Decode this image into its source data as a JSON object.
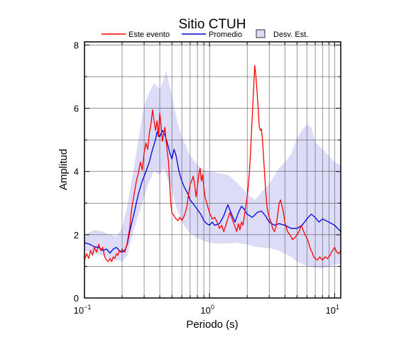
{
  "chart_data": {
    "type": "line",
    "title": "Sitio CTUH",
    "xlabel": "Periodo (s)",
    "ylabel": "Amplitud",
    "xscale": "log",
    "xlim": [
      0.1,
      11.2
    ],
    "ylim": [
      0,
      8.1
    ],
    "x_ticks": [
      {
        "value": 0.1,
        "base": "10",
        "exp": "−1"
      },
      {
        "value": 1,
        "base": "10",
        "exp": "0"
      },
      {
        "value": 10,
        "base": "10",
        "exp": "1"
      }
    ],
    "y_ticks": [
      0,
      2,
      4,
      6,
      8
    ],
    "grid": true,
    "legend_position": "top",
    "legend": [
      {
        "label": "Este evento",
        "kind": "line",
        "color": "#ff0000"
      },
      {
        "label": "Promedio",
        "kind": "line",
        "color": "#0000dd"
      },
      {
        "label": "Desv. Est.",
        "kind": "box",
        "color": "#dcdcf8"
      }
    ],
    "band": {
      "name": "Desv. Est.",
      "color": "#dcdcf8",
      "upper": [
        [
          0.1,
          2.0
        ],
        [
          0.12,
          2.15
        ],
        [
          0.14,
          2.1
        ],
        [
          0.16,
          2.0
        ],
        [
          0.18,
          1.95
        ],
        [
          0.2,
          2.2
        ],
        [
          0.22,
          2.9
        ],
        [
          0.25,
          4.2
        ],
        [
          0.28,
          5.4
        ],
        [
          0.3,
          6.1
        ],
        [
          0.33,
          6.5
        ],
        [
          0.36,
          6.8
        ],
        [
          0.4,
          6.6
        ],
        [
          0.43,
          6.9
        ],
        [
          0.45,
          7.2
        ],
        [
          0.48,
          6.7
        ],
        [
          0.5,
          6.4
        ],
        [
          0.55,
          5.6
        ],
        [
          0.6,
          5.1
        ],
        [
          0.65,
          4.8
        ],
        [
          0.7,
          4.5
        ],
        [
          0.8,
          4.2
        ],
        [
          0.9,
          4.05
        ],
        [
          1.0,
          4.0
        ],
        [
          1.2,
          3.95
        ],
        [
          1.4,
          3.9
        ],
        [
          1.6,
          3.7
        ],
        [
          1.8,
          3.5
        ],
        [
          2.0,
          3.3
        ],
        [
          2.3,
          3.1
        ],
        [
          2.6,
          3.35
        ],
        [
          3.0,
          3.6
        ],
        [
          3.5,
          4.05
        ],
        [
          4.0,
          4.3
        ],
        [
          4.5,
          4.55
        ],
        [
          5.0,
          5.05
        ],
        [
          5.5,
          5.3
        ],
        [
          6.0,
          5.5
        ],
        [
          6.5,
          5.4
        ],
        [
          7.0,
          4.95
        ],
        [
          8.0,
          4.7
        ],
        [
          9.0,
          4.5
        ],
        [
          10.0,
          4.3
        ],
        [
          11.2,
          4.2
        ]
      ],
      "lower": [
        [
          0.1,
          1.5
        ],
        [
          0.12,
          1.4
        ],
        [
          0.14,
          1.35
        ],
        [
          0.16,
          1.2
        ],
        [
          0.18,
          1.2
        ],
        [
          0.2,
          1.15
        ],
        [
          0.22,
          1.35
        ],
        [
          0.25,
          2.2
        ],
        [
          0.28,
          2.8
        ],
        [
          0.3,
          3.2
        ],
        [
          0.33,
          3.7
        ],
        [
          0.36,
          4.0
        ],
        [
          0.4,
          3.9
        ],
        [
          0.43,
          4.1
        ],
        [
          0.45,
          3.9
        ],
        [
          0.5,
          3.4
        ],
        [
          0.55,
          2.8
        ],
        [
          0.6,
          2.4
        ],
        [
          0.65,
          2.2
        ],
        [
          0.7,
          2.05
        ],
        [
          0.8,
          1.9
        ],
        [
          0.9,
          1.8
        ],
        [
          1.0,
          1.75
        ],
        [
          1.2,
          1.72
        ],
        [
          1.4,
          1.72
        ],
        [
          1.6,
          1.75
        ],
        [
          1.8,
          1.72
        ],
        [
          2.0,
          1.7
        ],
        [
          2.3,
          1.62
        ],
        [
          2.6,
          1.6
        ],
        [
          3.0,
          1.58
        ],
        [
          3.5,
          1.52
        ],
        [
          4.0,
          1.4
        ],
        [
          4.5,
          1.3
        ],
        [
          5.0,
          1.15
        ],
        [
          5.5,
          1.08
        ],
        [
          6.0,
          1.02
        ],
        [
          6.5,
          0.98
        ],
        [
          7.0,
          0.95
        ],
        [
          8.0,
          0.95
        ],
        [
          9.0,
          0.98
        ],
        [
          10.0,
          1.05
        ],
        [
          11.2,
          1.1
        ]
      ]
    },
    "series": [
      {
        "name": "Promedio",
        "color": "#0000dd",
        "points": [
          [
            0.1,
            1.75
          ],
          [
            0.11,
            1.7
          ],
          [
            0.12,
            1.62
          ],
          [
            0.13,
            1.6
          ],
          [
            0.14,
            1.5
          ],
          [
            0.15,
            1.55
          ],
          [
            0.16,
            1.42
          ],
          [
            0.17,
            1.55
          ],
          [
            0.18,
            1.6
          ],
          [
            0.19,
            1.5
          ],
          [
            0.2,
            1.45
          ],
          [
            0.21,
            1.5
          ],
          [
            0.22,
            1.7
          ],
          [
            0.23,
            2.1
          ],
          [
            0.25,
            2.7
          ],
          [
            0.27,
            3.3
          ],
          [
            0.29,
            3.7
          ],
          [
            0.31,
            4.0
          ],
          [
            0.33,
            4.3
          ],
          [
            0.35,
            4.7
          ],
          [
            0.37,
            5.0
          ],
          [
            0.38,
            5.25
          ],
          [
            0.4,
            5.1
          ],
          [
            0.42,
            5.3
          ],
          [
            0.44,
            5.15
          ],
          [
            0.46,
            4.9
          ],
          [
            0.48,
            4.6
          ],
          [
            0.5,
            4.4
          ],
          [
            0.52,
            4.7
          ],
          [
            0.54,
            4.5
          ],
          [
            0.57,
            4.0
          ],
          [
            0.6,
            3.7
          ],
          [
            0.63,
            3.5
          ],
          [
            0.67,
            3.3
          ],
          [
            0.7,
            3.1
          ],
          [
            0.75,
            2.95
          ],
          [
            0.8,
            2.8
          ],
          [
            0.85,
            2.65
          ],
          [
            0.9,
            2.45
          ],
          [
            0.95,
            2.35
          ],
          [
            1.0,
            2.3
          ],
          [
            1.05,
            2.4
          ],
          [
            1.1,
            2.3
          ],
          [
            1.2,
            2.35
          ],
          [
            1.3,
            2.6
          ],
          [
            1.4,
            2.95
          ],
          [
            1.5,
            2.65
          ],
          [
            1.6,
            2.4
          ],
          [
            1.7,
            2.7
          ],
          [
            1.8,
            2.9
          ],
          [
            1.9,
            2.8
          ],
          [
            2.0,
            2.65
          ],
          [
            2.2,
            2.55
          ],
          [
            2.4,
            2.7
          ],
          [
            2.6,
            2.75
          ],
          [
            2.8,
            2.6
          ],
          [
            3.0,
            2.4
          ],
          [
            3.3,
            2.3
          ],
          [
            3.6,
            2.35
          ],
          [
            4.0,
            2.3
          ],
          [
            4.5,
            2.2
          ],
          [
            5.0,
            2.2
          ],
          [
            5.5,
            2.3
          ],
          [
            6.0,
            2.5
          ],
          [
            6.5,
            2.65
          ],
          [
            7.0,
            2.55
          ],
          [
            7.5,
            2.4
          ],
          [
            8.0,
            2.5
          ],
          [
            8.5,
            2.45
          ],
          [
            9.0,
            2.4
          ],
          [
            10.0,
            2.3
          ],
          [
            11.2,
            2.1
          ]
        ]
      },
      {
        "name": "Este evento",
        "color": "#ff0000",
        "points": [
          [
            0.1,
            1.2
          ],
          [
            0.104,
            1.4
          ],
          [
            0.108,
            1.25
          ],
          [
            0.112,
            1.5
          ],
          [
            0.116,
            1.35
          ],
          [
            0.12,
            1.6
          ],
          [
            0.125,
            1.45
          ],
          [
            0.13,
            1.7
          ],
          [
            0.135,
            1.5
          ],
          [
            0.14,
            1.6
          ],
          [
            0.145,
            1.3
          ],
          [
            0.15,
            1.2
          ],
          [
            0.155,
            1.15
          ],
          [
            0.16,
            1.25
          ],
          [
            0.165,
            1.15
          ],
          [
            0.17,
            1.3
          ],
          [
            0.175,
            1.25
          ],
          [
            0.18,
            1.4
          ],
          [
            0.185,
            1.35
          ],
          [
            0.19,
            1.5
          ],
          [
            0.195,
            1.45
          ],
          [
            0.2,
            1.55
          ],
          [
            0.205,
            1.5
          ],
          [
            0.21,
            1.45
          ],
          [
            0.215,
            1.6
          ],
          [
            0.22,
            1.75
          ],
          [
            0.225,
            2.0
          ],
          [
            0.23,
            2.2
          ],
          [
            0.235,
            2.6
          ],
          [
            0.24,
            2.9
          ],
          [
            0.245,
            3.1
          ],
          [
            0.25,
            3.3
          ],
          [
            0.26,
            3.7
          ],
          [
            0.27,
            3.95
          ],
          [
            0.28,
            4.3
          ],
          [
            0.29,
            4.05
          ],
          [
            0.3,
            4.6
          ],
          [
            0.31,
            4.9
          ],
          [
            0.32,
            4.7
          ],
          [
            0.33,
            5.2
          ],
          [
            0.34,
            5.5
          ],
          [
            0.35,
            5.95
          ],
          [
            0.36,
            5.6
          ],
          [
            0.37,
            5.3
          ],
          [
            0.38,
            5.6
          ],
          [
            0.39,
            5.1
          ],
          [
            0.4,
            5.85
          ],
          [
            0.41,
            5.45
          ],
          [
            0.42,
            4.95
          ],
          [
            0.43,
            5.2
          ],
          [
            0.44,
            5.4
          ],
          [
            0.45,
            4.95
          ],
          [
            0.46,
            4.6
          ],
          [
            0.47,
            4.3
          ],
          [
            0.48,
            3.6
          ],
          [
            0.49,
            3.0
          ],
          [
            0.5,
            2.7
          ],
          [
            0.52,
            2.6
          ],
          [
            0.54,
            2.5
          ],
          [
            0.56,
            2.45
          ],
          [
            0.58,
            2.55
          ],
          [
            0.6,
            2.45
          ],
          [
            0.62,
            2.55
          ],
          [
            0.64,
            2.7
          ],
          [
            0.66,
            2.9
          ],
          [
            0.68,
            3.3
          ],
          [
            0.7,
            3.6
          ],
          [
            0.72,
            3.7
          ],
          [
            0.74,
            3.85
          ],
          [
            0.76,
            3.6
          ],
          [
            0.78,
            3.2
          ],
          [
            0.8,
            3.5
          ],
          [
            0.82,
            3.9
          ],
          [
            0.84,
            4.1
          ],
          [
            0.86,
            3.7
          ],
          [
            0.88,
            3.9
          ],
          [
            0.9,
            3.5
          ],
          [
            0.92,
            3.2
          ],
          [
            0.95,
            3.0
          ],
          [
            1.0,
            2.7
          ],
          [
            1.05,
            2.5
          ],
          [
            1.1,
            2.55
          ],
          [
            1.15,
            2.4
          ],
          [
            1.2,
            2.2
          ],
          [
            1.25,
            2.3
          ],
          [
            1.3,
            2.1
          ],
          [
            1.35,
            2.3
          ],
          [
            1.4,
            2.5
          ],
          [
            1.45,
            2.7
          ],
          [
            1.5,
            2.55
          ],
          [
            1.55,
            2.4
          ],
          [
            1.6,
            2.25
          ],
          [
            1.65,
            2.1
          ],
          [
            1.7,
            2.35
          ],
          [
            1.75,
            2.15
          ],
          [
            1.8,
            2.4
          ],
          [
            1.85,
            2.3
          ],
          [
            1.9,
            2.6
          ],
          [
            1.95,
            2.9
          ],
          [
            2.0,
            3.2
          ],
          [
            2.05,
            3.6
          ],
          [
            2.1,
            4.2
          ],
          [
            2.15,
            5.0
          ],
          [
            2.2,
            5.8
          ],
          [
            2.25,
            6.6
          ],
          [
            2.3,
            7.35
          ],
          [
            2.35,
            7.0
          ],
          [
            2.4,
            6.5
          ],
          [
            2.45,
            6.0
          ],
          [
            2.5,
            5.4
          ],
          [
            2.55,
            5.3
          ],
          [
            2.6,
            5.35
          ],
          [
            2.65,
            5.0
          ],
          [
            2.7,
            4.5
          ],
          [
            2.75,
            4.0
          ],
          [
            2.8,
            3.5
          ],
          [
            2.85,
            3.1
          ],
          [
            2.9,
            2.8
          ],
          [
            3.0,
            2.55
          ],
          [
            3.1,
            2.4
          ],
          [
            3.2,
            2.2
          ],
          [
            3.3,
            2.1
          ],
          [
            3.4,
            2.25
          ],
          [
            3.5,
            2.6
          ],
          [
            3.6,
            3.0
          ],
          [
            3.7,
            3.1
          ],
          [
            3.8,
            2.9
          ],
          [
            3.9,
            2.7
          ],
          [
            4.0,
            2.4
          ],
          [
            4.2,
            2.1
          ],
          [
            4.4,
            2.0
          ],
          [
            4.6,
            1.85
          ],
          [
            4.8,
            1.9
          ],
          [
            5.0,
            2.0
          ],
          [
            5.2,
            2.1
          ],
          [
            5.4,
            2.3
          ],
          [
            5.6,
            2.15
          ],
          [
            5.8,
            2.0
          ],
          [
            6.0,
            1.9
          ],
          [
            6.2,
            1.75
          ],
          [
            6.4,
            1.55
          ],
          [
            6.6,
            1.45
          ],
          [
            6.8,
            1.3
          ],
          [
            7.0,
            1.25
          ],
          [
            7.3,
            1.2
          ],
          [
            7.6,
            1.3
          ],
          [
            8.0,
            1.2
          ],
          [
            8.4,
            1.3
          ],
          [
            8.8,
            1.25
          ],
          [
            9.2,
            1.35
          ],
          [
            9.6,
            1.5
          ],
          [
            10.0,
            1.6
          ],
          [
            10.4,
            1.45
          ],
          [
            10.8,
            1.4
          ],
          [
            11.2,
            1.5
          ]
        ]
      }
    ]
  }
}
